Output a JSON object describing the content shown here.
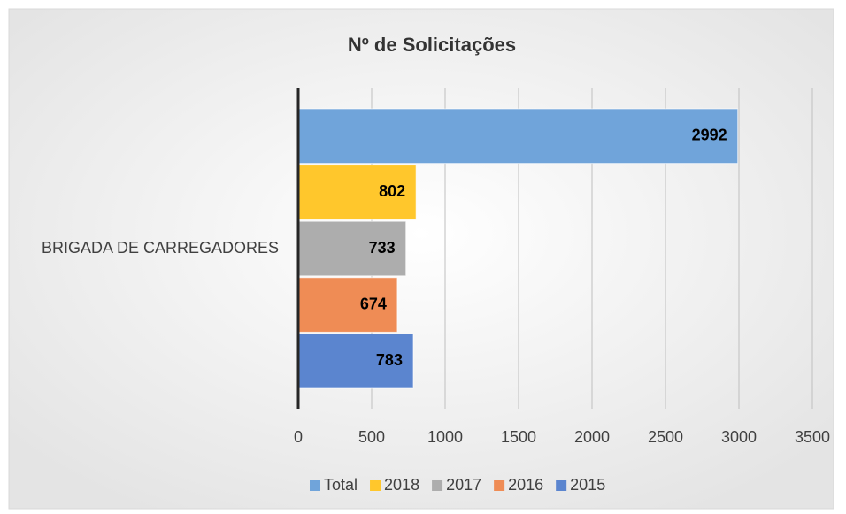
{
  "chart_data": {
    "type": "bar",
    "orientation": "horizontal",
    "title": "Nº de Solicitações",
    "categories": [
      "BRIGADA DE CARREGADORES"
    ],
    "series": [
      {
        "name": "Total",
        "color": "#70a4da",
        "values": [
          2992
        ]
      },
      {
        "name": "2018",
        "color": "#ffc72c",
        "values": [
          802
        ]
      },
      {
        "name": "2017",
        "color": "#adadad",
        "values": [
          733
        ]
      },
      {
        "name": "2016",
        "color": "#ef8c55",
        "values": [
          674
        ]
      },
      {
        "name": "2015",
        "color": "#5b85cf",
        "values": [
          783
        ]
      }
    ],
    "xlim": [
      0,
      3500
    ],
    "xticks": [
      0,
      500,
      1000,
      1500,
      2000,
      2500,
      3000,
      3500
    ],
    "grid": true,
    "legend": "bottom"
  }
}
